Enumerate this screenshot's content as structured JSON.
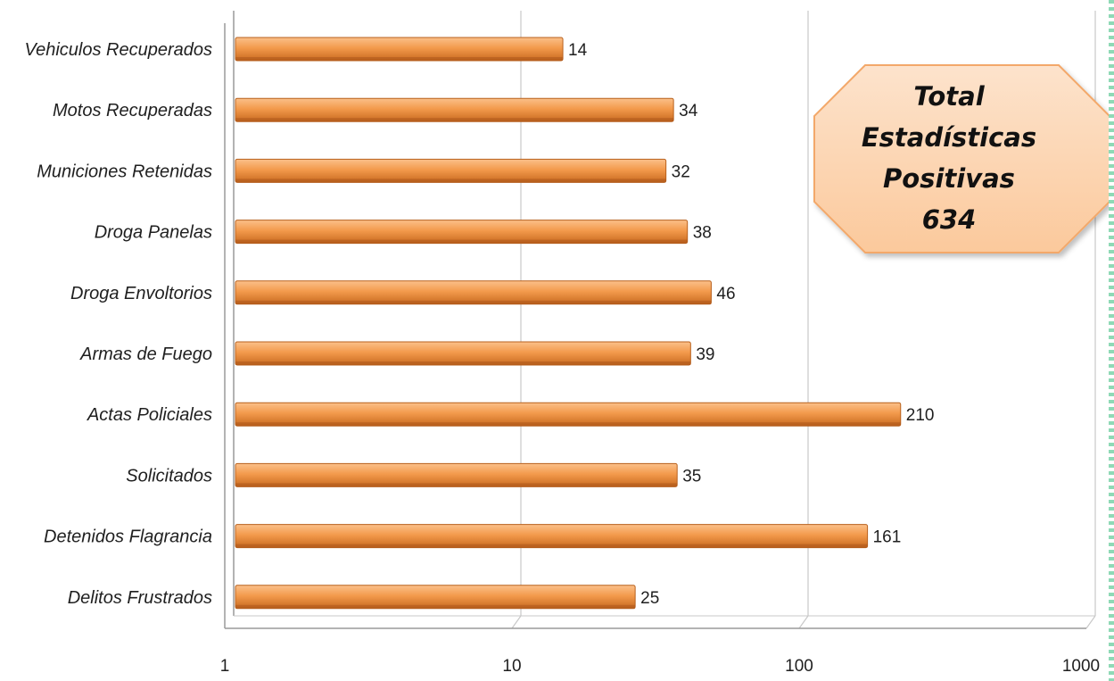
{
  "chart_data": {
    "type": "bar",
    "orientation": "horizontal",
    "x_scale": "log",
    "xlim": [
      1,
      1000
    ],
    "x_ticks": [
      "1",
      "10",
      "100",
      "1000"
    ],
    "grid": true,
    "categories": [
      "Vehiculos Recuperados",
      "Motos Recuperadas",
      "Municiones Retenidas",
      "Droga Panelas",
      "Droga Envoltorios",
      "Armas de Fuego",
      "Actas Policiales",
      "Solicitados",
      "Detenidos Flagrancia",
      "Delitos Frustrados"
    ],
    "values": [
      14,
      34,
      32,
      38,
      46,
      39,
      210,
      35,
      161,
      25
    ],
    "value_labels": [
      "14",
      "34",
      "32",
      "38",
      "46",
      "39",
      "210",
      "35",
      "161",
      "25"
    ],
    "bar_color": "#f39a4c",
    "annotation": {
      "lines": [
        "Total",
        "Estadísticas",
        "Positivas",
        "634"
      ],
      "fill": "#fcd5b4",
      "stroke": "#f3a86a"
    }
  }
}
